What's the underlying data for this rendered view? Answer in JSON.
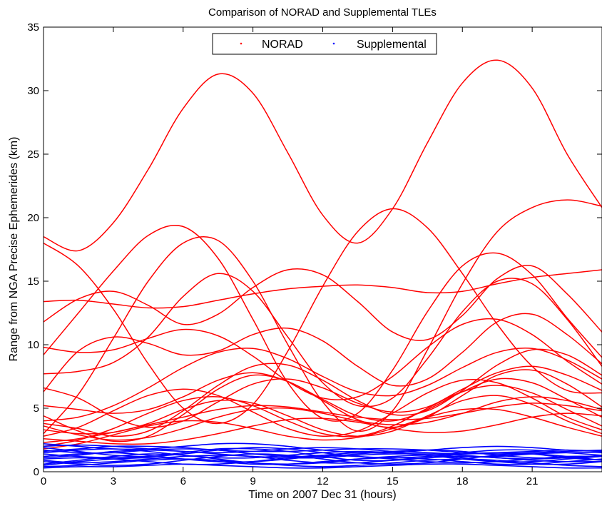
{
  "chart_data": {
    "type": "line",
    "title": "Comparison of NORAD and Supplemental TLEs",
    "xlabel": "Time on 2007 Dec 31 (hours)",
    "ylabel": "Range from NGA Precise Ephemerides (km)",
    "xlim": [
      0,
      24
    ],
    "ylim": [
      0,
      35
    ],
    "xticks": [
      0,
      3,
      6,
      9,
      12,
      15,
      18,
      21
    ],
    "yticks": [
      0,
      5,
      10,
      15,
      20,
      25,
      30,
      35
    ],
    "grid": false,
    "legend_position": "top-center",
    "colors": {
      "NORAD": "#ff0000",
      "Supplemental": "#0000ff"
    },
    "series": [
      {
        "name": "NORAD",
        "x": [
          0,
          1.5,
          3,
          4.5,
          6,
          7.5,
          9,
          10.5,
          12,
          13.5,
          15,
          16.5,
          18,
          19.5,
          21,
          22.5,
          24
        ],
        "curves": [
          [
            18.5,
            17.4,
            19.6,
            23.8,
            28.6,
            31.3,
            29.8,
            25.1,
            20.2,
            18.0,
            20.7,
            25.9,
            30.6,
            32.4,
            30.2,
            25.0,
            20.8
          ],
          [
            13.4,
            13.5,
            13.2,
            12.9,
            13.0,
            13.5,
            14.0,
            14.4,
            14.6,
            14.7,
            14.5,
            14.1,
            14.2,
            14.8,
            15.3,
            15.6,
            15.9
          ],
          [
            18.0,
            16.2,
            12.8,
            8.5,
            5.0,
            3.8,
            5.3,
            9.5,
            14.6,
            18.9,
            20.7,
            19.2,
            15.6,
            11.6,
            8.3,
            6.4,
            6.2
          ],
          [
            9.2,
            12.5,
            15.8,
            18.6,
            19.3,
            16.8,
            12.0,
            7.0,
            4.2,
            4.6,
            8.0,
            12.6,
            16.2,
            17.2,
            15.5,
            12.1,
            9.0
          ],
          [
            3.0,
            6.1,
            10.5,
            15.0,
            18.0,
            18.2,
            15.0,
            10.0,
            5.5,
            3.2,
            4.8,
            9.6,
            14.8,
            18.9,
            20.8,
            21.4,
            20.9
          ],
          [
            11.8,
            13.6,
            14.2,
            13.1,
            11.6,
            12.4,
            14.5,
            15.9,
            15.5,
            13.4,
            11.0,
            10.4,
            12.3,
            15.2,
            16.2,
            14.0,
            11.0
          ],
          [
            6.3,
            9.5,
            10.6,
            10.1,
            9.2,
            9.5,
            10.8,
            11.3,
            10.3,
            8.3,
            6.8,
            7.3,
            9.4,
            11.8,
            12.4,
            10.8,
            8.5
          ],
          [
            7.7,
            7.9,
            8.6,
            10.6,
            13.8,
            15.6,
            14.2,
            10.6,
            7.0,
            5.2,
            5.8,
            8.9,
            12.6,
            15.0,
            14.8,
            12.0,
            8.3
          ],
          [
            6.6,
            5.8,
            4.3,
            3.5,
            4.0,
            5.5,
            6.9,
            7.3,
            6.6,
            5.4,
            4.7,
            5.1,
            6.5,
            7.8,
            8.3,
            7.6,
            6.4
          ],
          [
            3.8,
            3.4,
            2.8,
            3.2,
            4.8,
            6.8,
            8.3,
            8.4,
            7.2,
            5.6,
            4.5,
            4.8,
            6.4,
            8.4,
            9.6,
            9.2,
            7.6
          ],
          [
            5.2,
            4.9,
            4.6,
            4.9,
            5.9,
            7.2,
            7.8,
            7.1,
            5.7,
            4.4,
            4.0,
            4.9,
            6.3,
            7.3,
            7.0,
            5.7,
            4.3
          ],
          [
            2.3,
            2.6,
            3.1,
            3.7,
            4.3,
            4.9,
            5.2,
            5.1,
            4.7,
            4.3,
            4.1,
            4.2,
            4.6,
            5.1,
            5.4,
            5.2,
            4.8
          ],
          [
            4.4,
            3.2,
            2.4,
            2.8,
            4.5,
            6.5,
            7.6,
            7.1,
            5.6,
            4.1,
            3.5,
            4.3,
            6.0,
            7.6,
            8.0,
            6.9,
            5.1
          ],
          [
            2.0,
            2.5,
            3.4,
            4.6,
            5.6,
            5.9,
            5.2,
            4.0,
            3.0,
            2.8,
            3.6,
            5.0,
            6.3,
            6.8,
            6.2,
            4.9,
            3.6
          ],
          [
            3.3,
            3.0,
            3.1,
            3.8,
            4.9,
            5.6,
            5.4,
            4.4,
            3.3,
            2.8,
            3.2,
            4.4,
            5.6,
            6.0,
            5.3,
            4.0,
            3.0
          ],
          [
            2.8,
            3.5,
            4.8,
            6.0,
            6.5,
            6.0,
            4.7,
            3.4,
            2.8,
            3.2,
            4.6,
            6.2,
            7.2,
            7.0,
            5.8,
            4.3,
            3.3
          ],
          [
            3.6,
            2.9,
            2.5,
            2.7,
            3.4,
            4.3,
            4.9,
            5.0,
            4.6,
            4.0,
            3.7,
            3.9,
            4.6,
            5.5,
            5.9,
            5.6,
            4.9
          ],
          [
            1.8,
            2.2,
            2.9,
            3.6,
            4.0,
            3.9,
            3.4,
            2.8,
            2.5,
            2.7,
            3.4,
            4.3,
            4.9,
            4.9,
            4.3,
            3.5,
            2.8
          ],
          [
            2.6,
            2.4,
            2.2,
            2.2,
            2.5,
            3.0,
            3.6,
            4.1,
            4.2,
            3.9,
            3.4,
            3.1,
            3.2,
            3.7,
            4.3,
            4.6,
            4.4
          ],
          [
            9.8,
            9.4,
            9.6,
            10.5,
            11.2,
            10.7,
            9.1,
            7.1,
            5.8,
            5.9,
            7.5,
            9.8,
            11.6,
            12.0,
            10.8,
            8.7,
            6.9
          ],
          [
            4.0,
            4.3,
            5.2,
            6.6,
            8.2,
            9.4,
            9.7,
            8.9,
            7.5,
            6.3,
            6.0,
            6.8,
            8.2,
            9.4,
            9.7,
            8.8,
            7.3
          ]
        ]
      },
      {
        "name": "Supplemental",
        "x": [
          0,
          1.5,
          3,
          4.5,
          6,
          7.5,
          9,
          10.5,
          12,
          13.5,
          15,
          16.5,
          18,
          19.5,
          21,
          22.5,
          24
        ],
        "curves": [
          [
            1.6,
            1.8,
            2.0,
            2.0,
            1.9,
            1.7,
            1.6,
            1.6,
            1.7,
            1.8,
            1.8,
            1.7,
            1.5,
            1.4,
            1.5,
            1.6,
            1.7
          ],
          [
            0.8,
            0.6,
            0.5,
            0.6,
            0.9,
            1.2,
            1.4,
            1.3,
            1.0,
            0.7,
            0.6,
            0.7,
            1.0,
            1.3,
            1.4,
            1.2,
            0.9
          ],
          [
            1.2,
            1.4,
            1.5,
            1.3,
            1.0,
            0.8,
            0.8,
            1.0,
            1.3,
            1.5,
            1.5,
            1.3,
            1.0,
            0.8,
            0.8,
            1.0,
            1.2
          ],
          [
            2.2,
            2.0,
            1.8,
            1.8,
            2.0,
            2.2,
            2.2,
            2.0,
            1.7,
            1.5,
            1.5,
            1.7,
            1.9,
            2.0,
            1.9,
            1.7,
            1.6
          ],
          [
            0.4,
            0.5,
            0.7,
            0.9,
            1.0,
            0.9,
            0.7,
            0.5,
            0.4,
            0.5,
            0.7,
            0.9,
            1.0,
            0.9,
            0.7,
            0.5,
            0.4
          ],
          [
            1.0,
            1.1,
            1.0,
            0.8,
            0.6,
            0.6,
            0.8,
            1.1,
            1.3,
            1.2,
            1.0,
            0.8,
            0.7,
            0.8,
            1.0,
            1.2,
            1.2
          ],
          [
            1.9,
            1.6,
            1.3,
            1.2,
            1.4,
            1.7,
            1.9,
            1.8,
            1.5,
            1.2,
            1.1,
            1.2,
            1.5,
            1.7,
            1.7,
            1.5,
            1.3
          ],
          [
            0.6,
            0.9,
            1.2,
            1.4,
            1.3,
            1.0,
            0.7,
            0.6,
            0.7,
            1.0,
            1.2,
            1.3,
            1.1,
            0.8,
            0.6,
            0.6,
            0.8
          ],
          [
            1.4,
            1.2,
            1.1,
            1.2,
            1.5,
            1.8,
            1.8,
            1.6,
            1.2,
            0.9,
            0.9,
            1.1,
            1.4,
            1.5,
            1.4,
            1.1,
            0.9
          ],
          [
            0.3,
            0.4,
            0.4,
            0.5,
            0.6,
            0.5,
            0.4,
            0.3,
            0.3,
            0.4,
            0.5,
            0.6,
            0.6,
            0.5,
            0.4,
            0.3,
            0.3
          ],
          [
            1.7,
            1.5,
            1.5,
            1.7,
            1.8,
            1.7,
            1.4,
            1.2,
            1.2,
            1.4,
            1.6,
            1.7,
            1.6,
            1.3,
            1.1,
            1.1,
            1.3
          ],
          [
            0.9,
            0.7,
            0.8,
            1.0,
            1.2,
            1.3,
            1.2,
            0.9,
            0.7,
            0.7,
            0.9,
            1.1,
            1.2,
            1.1,
            0.9,
            0.8,
            0.8
          ],
          [
            1.5,
            1.7,
            1.8,
            1.6,
            1.3,
            1.1,
            1.1,
            1.3,
            1.5,
            1.6,
            1.5,
            1.3,
            1.2,
            1.2,
            1.4,
            1.5,
            1.5
          ],
          [
            0.5,
            0.8,
            1.0,
            1.1,
            1.0,
            0.8,
            0.6,
            0.6,
            0.8,
            1.0,
            1.1,
            1.0,
            0.8,
            0.6,
            0.6,
            0.8,
            1.0
          ],
          [
            2.0,
            2.1,
            2.0,
            1.8,
            1.6,
            1.5,
            1.6,
            1.8,
            1.9,
            1.8,
            1.6,
            1.5,
            1.4,
            1.5,
            1.6,
            1.7,
            1.6
          ],
          [
            1.1,
            1.3,
            1.6,
            1.7,
            1.6,
            1.4,
            1.2,
            1.1,
            1.1,
            1.3,
            1.4,
            1.4,
            1.3,
            1.1,
            1.0,
            1.1,
            1.2
          ]
        ]
      }
    ]
  }
}
